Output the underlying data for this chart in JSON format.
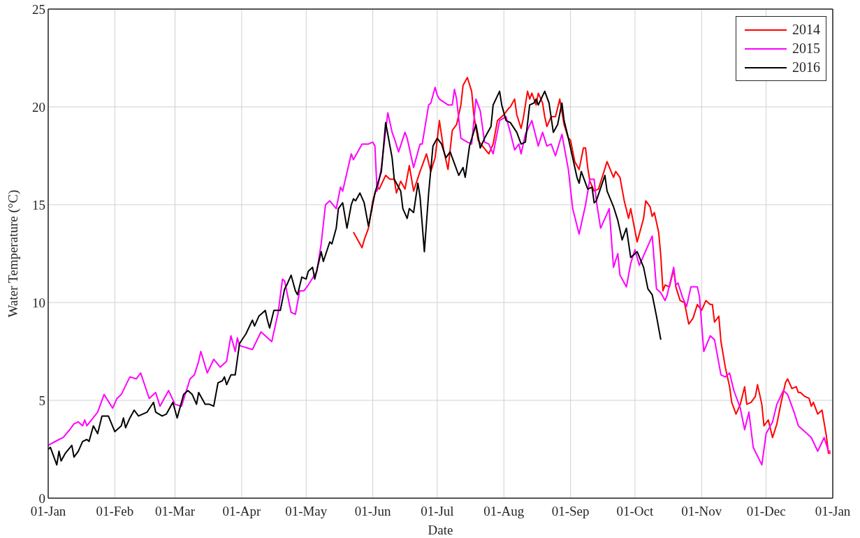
{
  "chart_data": {
    "type": "line",
    "xlabel": "Date",
    "ylabel": "Water Temperature (°C)",
    "xlim": [
      "2015-01-01",
      "2016-01-01"
    ],
    "xticks": [
      {
        "value": "2015-01-01",
        "label": "01-Jan"
      },
      {
        "value": "2015-02-01",
        "label": "01-Feb"
      },
      {
        "value": "2015-03-01",
        "label": "01-Mar"
      },
      {
        "value": "2015-04-01",
        "label": "01-Apr"
      },
      {
        "value": "2015-05-01",
        "label": "01-May"
      },
      {
        "value": "2015-06-01",
        "label": "01-Jun"
      },
      {
        "value": "2015-07-01",
        "label": "01-Jul"
      },
      {
        "value": "2015-08-01",
        "label": "01-Aug"
      },
      {
        "value": "2015-09-01",
        "label": "01-Sep"
      },
      {
        "value": "2015-10-01",
        "label": "01-Oct"
      },
      {
        "value": "2015-11-01",
        "label": "01-Nov"
      },
      {
        "value": "2015-12-01",
        "label": "01-Dec"
      },
      {
        "value": "2016-01-01",
        "label": "01-Jan"
      }
    ],
    "ylim": [
      0,
      25
    ],
    "yticks": [
      0,
      5,
      10,
      15,
      20,
      25
    ],
    "grid": true,
    "legend": "top right",
    "series": [
      {
        "name": "2014",
        "color": "#ff0000",
        "x": [
          "2015-05-23",
          "2015-05-24",
          "2015-05-27",
          "2015-05-28",
          "2015-05-30",
          "2015-06-01",
          "2015-06-03",
          "2015-06-04",
          "2015-06-07",
          "2015-06-09",
          "2015-06-11",
          "2015-06-12",
          "2015-06-14",
          "2015-06-16",
          "2015-06-18",
          "2015-06-20",
          "2015-06-23",
          "2015-06-26",
          "2015-06-28",
          "2015-06-30",
          "2015-07-02",
          "2015-07-04",
          "2015-07-06",
          "2015-07-08",
          "2015-07-10",
          "2015-07-12",
          "2015-07-13",
          "2015-07-15",
          "2015-07-17",
          "2015-07-18",
          "2015-07-20",
          "2015-07-22",
          "2015-07-25",
          "2015-07-27",
          "2015-07-29",
          "2015-08-01",
          "2015-08-03",
          "2015-08-04",
          "2015-08-06",
          "2015-08-07",
          "2015-08-09",
          "2015-08-10",
          "2015-08-12",
          "2015-08-13",
          "2015-08-14",
          "2015-08-16",
          "2015-08-17",
          "2015-08-19",
          "2015-08-20",
          "2015-08-21",
          "2015-08-23",
          "2015-08-25",
          "2015-08-27",
          "2015-08-29",
          "2015-08-31",
          "2015-09-01",
          "2015-09-03",
          "2015-09-05",
          "2015-09-07",
          "2015-09-08",
          "2015-09-09",
          "2015-09-10",
          "2015-09-12",
          "2015-09-14",
          "2015-09-18",
          "2015-09-21",
          "2015-09-22",
          "2015-09-24",
          "2015-09-26",
          "2015-09-28",
          "2015-09-29",
          "2015-10-02",
          "2015-10-05",
          "2015-10-06",
          "2015-10-08",
          "2015-10-09",
          "2015-10-10",
          "2015-10-12",
          "2015-10-13",
          "2015-10-14",
          "2015-10-15",
          "2015-10-17",
          "2015-10-19",
          "2015-10-20",
          "2015-10-22",
          "2015-10-24",
          "2015-10-26",
          "2015-10-28",
          "2015-10-30",
          "2015-11-01",
          "2015-11-03",
          "2015-11-05",
          "2015-11-06",
          "2015-11-07",
          "2015-11-09",
          "2015-11-10",
          "2015-11-12",
          "2015-11-14",
          "2015-11-15",
          "2015-11-17",
          "2015-11-19",
          "2015-11-21",
          "2015-11-22",
          "2015-11-24",
          "2015-11-26",
          "2015-11-27",
          "2015-11-29",
          "2015-11-30",
          "2015-12-02",
          "2015-12-04",
          "2015-12-06",
          "2015-12-08",
          "2015-12-10",
          "2015-12-11",
          "2015-12-13",
          "2015-12-15",
          "2015-12-16",
          "2015-12-17",
          "2015-12-19",
          "2015-12-21",
          "2015-12-22",
          "2015-12-23",
          "2015-12-25",
          "2015-12-27",
          "2015-12-29",
          "2015-12-30",
          "2015-12-31"
        ],
        "values": [
          13.6,
          13.4,
          12.8,
          13.2,
          13.8,
          15.2,
          15.9,
          15.8,
          16.5,
          16.3,
          16.3,
          15.6,
          16.2,
          15.8,
          17.0,
          15.7,
          16.7,
          17.6,
          16.7,
          17.4,
          19.3,
          17.8,
          16.8,
          18.8,
          19.1,
          20.1,
          21.1,
          21.5,
          20.8,
          19.6,
          18.3,
          18.0,
          17.6,
          18.1,
          19.3,
          19.6,
          19.9,
          20.0,
          20.4,
          19.6,
          18.9,
          19.4,
          20.8,
          20.4,
          20.7,
          20.1,
          20.7,
          20.2,
          19.5,
          19.0,
          19.5,
          19.5,
          20.4,
          19.1,
          18.4,
          18.3,
          17.2,
          16.8,
          17.9,
          17.9,
          16.9,
          16.2,
          15.7,
          15.8,
          17.2,
          16.4,
          16.7,
          16.4,
          15.2,
          14.3,
          14.8,
          13.1,
          14.3,
          15.2,
          14.9,
          14.4,
          14.6,
          13.6,
          12.4,
          10.6,
          10.9,
          10.8,
          11.7,
          10.8,
          10.1,
          10.0,
          8.9,
          9.2,
          9.9,
          9.6,
          10.1,
          9.9,
          9.9,
          9.0,
          9.3,
          8.0,
          6.7,
          5.7,
          4.9,
          4.3,
          4.8,
          5.7,
          4.8,
          4.9,
          5.2,
          5.8,
          4.8,
          3.7,
          4.0,
          3.1,
          3.8,
          4.9,
          5.9,
          6.1,
          5.6,
          5.7,
          5.4,
          5.4,
          5.2,
          5.1,
          4.7,
          4.9,
          4.3,
          4.5,
          3.2,
          2.3,
          2.3
        ]
      },
      {
        "name": "2015",
        "color": "#ff00ff",
        "x": [
          "2015-01-01",
          "2015-01-06",
          "2015-01-08",
          "2015-01-11",
          "2015-01-13",
          "2015-01-15",
          "2015-01-17",
          "2015-01-18",
          "2015-01-19",
          "2015-01-24",
          "2015-01-27",
          "2015-01-31",
          "2015-02-02",
          "2015-02-04",
          "2015-02-08",
          "2015-02-11",
          "2015-02-13",
          "2015-02-17",
          "2015-02-20",
          "2015-02-22",
          "2015-02-26",
          "2015-03-01",
          "2015-03-04",
          "2015-03-08",
          "2015-03-10",
          "2015-03-12",
          "2015-03-13",
          "2015-03-16",
          "2015-03-19",
          "2015-03-22",
          "2015-03-25",
          "2015-03-27",
          "2015-03-29",
          "2015-03-30",
          "2015-03-31",
          "2015-04-06",
          "2015-04-10",
          "2015-04-12",
          "2015-04-15",
          "2015-04-18",
          "2015-04-20",
          "2015-04-21",
          "2015-04-24",
          "2015-04-26",
          "2015-04-28",
          "2015-04-30",
          "2015-05-02",
          "2015-05-06",
          "2015-05-08",
          "2015-05-10",
          "2015-05-12",
          "2015-05-15",
          "2015-05-17",
          "2015-05-18",
          "2015-05-22",
          "2015-05-23",
          "2015-05-27",
          "2015-05-30",
          "2015-06-01",
          "2015-06-02",
          "2015-06-03",
          "2015-06-05",
          "2015-06-08",
          "2015-06-10",
          "2015-06-11",
          "2015-06-13",
          "2015-06-16",
          "2015-06-17",
          "2015-06-20",
          "2015-06-23",
          "2015-06-24",
          "2015-06-27",
          "2015-06-28",
          "2015-06-30",
          "2015-07-01",
          "2015-07-02",
          "2015-07-06",
          "2015-07-08",
          "2015-07-09",
          "2015-07-10",
          "2015-07-12",
          "2015-07-15",
          "2015-07-17",
          "2015-07-19",
          "2015-07-21",
          "2015-07-23",
          "2015-07-25",
          "2015-07-27",
          "2015-07-30",
          "2015-08-02",
          "2015-08-04",
          "2015-08-06",
          "2015-08-08",
          "2015-08-09",
          "2015-08-11",
          "2015-08-14",
          "2015-08-17",
          "2015-08-19",
          "2015-08-21",
          "2015-08-23",
          "2015-08-25",
          "2015-08-28",
          "2015-08-31",
          "2015-09-02",
          "2015-09-05",
          "2015-09-08",
          "2015-09-10",
          "2015-09-12",
          "2015-09-13",
          "2015-09-15",
          "2015-09-19",
          "2015-09-21",
          "2015-09-23",
          "2015-09-24",
          "2015-09-27",
          "2015-09-29",
          "2015-10-01",
          "2015-10-03",
          "2015-10-07",
          "2015-10-09",
          "2015-10-11",
          "2015-10-13",
          "2015-10-15",
          "2015-10-16",
          "2015-10-19",
          "2015-10-20",
          "2015-10-21",
          "2015-10-23",
          "2015-10-25",
          "2015-10-27",
          "2015-10-30",
          "2015-10-31",
          "2015-11-02",
          "2015-11-05",
          "2015-11-07",
          "2015-11-10",
          "2015-11-12",
          "2015-11-14",
          "2015-11-16",
          "2015-11-19",
          "2015-11-21",
          "2015-11-23",
          "2015-11-25",
          "2015-11-29",
          "2015-12-01",
          "2015-12-04",
          "2015-12-06",
          "2015-12-09",
          "2015-12-11",
          "2015-12-14",
          "2015-12-16",
          "2015-12-19",
          "2015-12-22",
          "2015-12-25",
          "2015-12-28",
          "2015-12-30",
          "2015-12-31"
        ],
        "values": [
          2.7,
          3.0,
          3.1,
          3.5,
          3.8,
          3.9,
          3.7,
          4.0,
          3.7,
          4.4,
          5.3,
          4.6,
          5.1,
          5.3,
          6.2,
          6.1,
          6.4,
          5.1,
          5.4,
          4.7,
          5.5,
          4.8,
          4.7,
          6.1,
          6.3,
          7.0,
          7.5,
          6.4,
          7.1,
          6.7,
          7.0,
          8.3,
          7.5,
          8.2,
          7.8,
          7.6,
          8.5,
          8.3,
          8.0,
          9.5,
          11.2,
          11.1,
          9.5,
          9.4,
          10.6,
          10.6,
          10.9,
          11.6,
          13.0,
          15.0,
          15.2,
          14.8,
          15.9,
          15.7,
          17.6,
          17.3,
          18.1,
          18.1,
          18.2,
          18.0,
          15.7,
          16.9,
          19.7,
          18.7,
          18.4,
          17.7,
          18.7,
          18.4,
          16.9,
          18.1,
          18.1,
          20.1,
          20.2,
          21.0,
          20.6,
          20.4,
          20.1,
          20.1,
          20.9,
          20.4,
          18.4,
          18.2,
          18.1,
          20.4,
          19.8,
          18.2,
          18.1,
          17.6,
          19.3,
          19.5,
          18.7,
          17.8,
          18.1,
          17.6,
          18.6,
          19.3,
          18.0,
          18.7,
          18.0,
          18.1,
          17.5,
          18.6,
          16.8,
          14.8,
          13.5,
          15.0,
          16.3,
          16.3,
          15.2,
          13.8,
          14.8,
          11.8,
          12.5,
          11.4,
          10.8,
          12.0,
          12.7,
          11.9,
          12.9,
          13.4,
          10.7,
          10.5,
          10.1,
          10.4,
          11.8,
          10.9,
          11.0,
          10.3,
          9.8,
          10.8,
          10.8,
          10.3,
          7.5,
          8.3,
          8.1,
          6.3,
          6.2,
          6.4,
          5.5,
          4.6,
          3.5,
          4.4,
          2.6,
          1.7,
          3.3,
          3.9,
          4.8,
          5.5,
          5.3,
          4.4,
          3.7,
          3.4,
          3.1,
          2.4,
          3.1,
          2.4,
          2.4
        ]
      },
      {
        "name": "2016",
        "color": "#000000",
        "x": [
          "2015-01-01",
          "2015-01-02",
          "2015-01-05",
          "2015-01-06",
          "2015-01-07",
          "2015-01-09",
          "2015-01-12",
          "2015-01-13",
          "2015-01-15",
          "2015-01-17",
          "2015-01-19",
          "2015-01-20",
          "2015-01-22",
          "2015-01-24",
          "2015-01-26",
          "2015-01-29",
          "2015-02-01",
          "2015-02-04",
          "2015-02-05",
          "2015-02-06",
          "2015-02-08",
          "2015-02-10",
          "2015-02-12",
          "2015-02-16",
          "2015-02-19",
          "2015-02-20",
          "2015-02-23",
          "2015-02-25",
          "2015-02-28",
          "2015-03-02",
          "2015-03-05",
          "2015-03-07",
          "2015-03-09",
          "2015-03-11",
          "2015-03-12",
          "2015-03-15",
          "2015-03-17",
          "2015-03-19",
          "2015-03-21",
          "2015-03-23",
          "2015-03-24",
          "2015-03-25",
          "2015-03-27",
          "2015-03-29",
          "2015-03-31",
          "2015-04-03",
          "2015-04-06",
          "2015-04-07",
          "2015-04-09",
          "2015-04-12",
          "2015-04-13",
          "2015-04-14",
          "2015-04-16",
          "2015-04-19",
          "2015-04-21",
          "2015-04-22",
          "2015-04-24",
          "2015-04-26",
          "2015-04-27",
          "2015-04-29",
          "2015-05-01",
          "2015-05-02",
          "2015-05-04",
          "2015-05-05",
          "2015-05-08",
          "2015-05-09",
          "2015-05-12",
          "2015-05-13",
          "2015-05-15",
          "2015-05-16",
          "2015-05-18",
          "2015-05-20",
          "2015-05-22",
          "2015-05-23",
          "2015-05-24",
          "2015-05-26",
          "2015-05-28",
          "2015-05-30",
          "2015-06-02",
          "2015-06-05",
          "2015-06-07",
          "2015-06-10",
          "2015-06-11",
          "2015-06-14",
          "2015-06-15",
          "2015-06-17",
          "2015-06-18",
          "2015-06-20",
          "2015-06-22",
          "2015-06-23",
          "2015-06-25",
          "2015-06-27",
          "2015-06-29",
          "2015-07-01",
          "2015-07-03",
          "2015-07-05",
          "2015-07-07",
          "2015-07-09",
          "2015-07-11",
          "2015-07-13",
          "2015-07-14",
          "2015-07-16",
          "2015-07-19",
          "2015-07-21",
          "2015-07-23",
          "2015-07-26",
          "2015-07-27",
          "2015-07-30",
          "2015-07-31",
          "2015-08-02",
          "2015-08-04",
          "2015-08-07",
          "2015-08-09",
          "2015-08-11",
          "2015-08-13",
          "2015-08-15",
          "2015-08-16",
          "2015-08-17",
          "2015-08-20",
          "2015-08-22",
          "2015-08-24",
          "2015-08-26",
          "2015-08-28",
          "2015-08-29",
          "2015-08-31",
          "2015-09-02",
          "2015-09-04",
          "2015-09-05",
          "2015-09-06",
          "2015-09-09",
          "2015-09-11",
          "2015-09-12",
          "2015-09-13",
          "2015-09-17",
          "2015-09-18",
          "2015-09-21",
          "2015-09-23",
          "2015-09-25",
          "2015-09-27",
          "2015-09-29",
          "2015-10-02",
          "2015-10-05",
          "2015-10-07",
          "2015-10-09",
          "2015-10-11",
          "2015-10-13"
        ],
        "values": [
          2.5,
          2.6,
          1.7,
          2.4,
          1.9,
          2.3,
          2.7,
          2.1,
          2.4,
          2.9,
          3.0,
          2.9,
          3.7,
          3.3,
          4.2,
          4.2,
          3.4,
          3.7,
          4.1,
          3.6,
          4.1,
          4.5,
          4.2,
          4.4,
          4.9,
          4.4,
          4.2,
          4.3,
          4.9,
          4.1,
          5.3,
          5.5,
          5.3,
          4.8,
          5.4,
          4.8,
          4.8,
          4.7,
          5.9,
          6.0,
          6.2,
          5.8,
          6.3,
          6.3,
          7.9,
          8.4,
          9.1,
          8.8,
          9.3,
          9.6,
          9.1,
          8.7,
          9.6,
          9.6,
          10.7,
          10.9,
          11.4,
          10.6,
          10.4,
          11.3,
          11.2,
          11.6,
          11.8,
          11.2,
          12.6,
          12.1,
          13.1,
          13.0,
          13.8,
          14.8,
          15.1,
          13.8,
          15.0,
          15.3,
          15.2,
          15.6,
          15.1,
          13.9,
          15.6,
          16.7,
          19.2,
          17.4,
          16.3,
          15.7,
          14.8,
          14.3,
          14.8,
          14.6,
          16.1,
          15.4,
          12.6,
          15.6,
          18.0,
          18.4,
          18.1,
          17.4,
          17.7,
          17.1,
          16.5,
          16.9,
          16.4,
          18.0,
          19.1,
          17.9,
          18.4,
          19.0,
          20.1,
          20.8,
          20.1,
          19.3,
          19.2,
          18.7,
          18.1,
          18.2,
          20.1,
          20.2,
          20.4,
          20.1,
          20.8,
          20.2,
          18.7,
          19.1,
          20.2,
          19.3,
          18.4,
          17.4,
          16.4,
          16.1,
          16.7,
          15.8,
          15.9,
          15.1,
          15.2,
          16.5,
          15.7,
          14.9,
          14.2,
          13.2,
          13.8,
          12.3,
          12.6,
          11.8,
          10.7,
          10.4,
          9.3,
          8.1
        ]
      }
    ]
  }
}
